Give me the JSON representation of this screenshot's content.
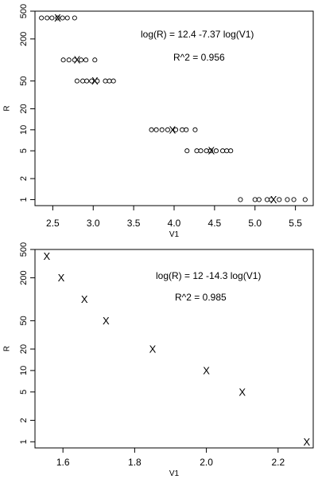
{
  "chart_data": [
    {
      "type": "scatter",
      "xlabel": "V1",
      "ylabel": "R",
      "xlim": [
        2.28,
        5.72
      ],
      "ylim": [
        0.82,
        500
      ],
      "y_scale": "log",
      "x_ticks": [
        "2.5",
        "3.0",
        "3.5",
        "4.0",
        "4.5",
        "5.0",
        "5.5"
      ],
      "y_ticks": [
        "1",
        "2",
        "5",
        "10",
        "20",
        "50",
        "200",
        "500"
      ],
      "annotations": [
        "log(R) =  12.4 -7.37  log(V1)",
        "R^2  =  0.956"
      ],
      "fit_line": {
        "intercept": 12.4,
        "slope": -7.37
      },
      "series": [
        {
          "marker": "circle",
          "points": [
            {
              "x": 2.36,
              "y": 400
            },
            {
              "x": 2.43,
              "y": 400
            },
            {
              "x": 2.49,
              "y": 400
            },
            {
              "x": 2.56,
              "y": 400
            },
            {
              "x": 2.62,
              "y": 400
            },
            {
              "x": 2.68,
              "y": 400
            },
            {
              "x": 2.77,
              "y": 400
            },
            {
              "x": 2.63,
              "y": 100
            },
            {
              "x": 2.7,
              "y": 100
            },
            {
              "x": 2.77,
              "y": 100
            },
            {
              "x": 2.85,
              "y": 100
            },
            {
              "x": 2.91,
              "y": 100
            },
            {
              "x": 3.02,
              "y": 100
            },
            {
              "x": 2.8,
              "y": 50
            },
            {
              "x": 2.87,
              "y": 50
            },
            {
              "x": 2.92,
              "y": 50
            },
            {
              "x": 2.98,
              "y": 50
            },
            {
              "x": 3.05,
              "y": 50
            },
            {
              "x": 3.15,
              "y": 50
            },
            {
              "x": 3.2,
              "y": 50
            },
            {
              "x": 3.25,
              "y": 50
            },
            {
              "x": 3.72,
              "y": 10
            },
            {
              "x": 3.78,
              "y": 10
            },
            {
              "x": 3.85,
              "y": 10
            },
            {
              "x": 3.92,
              "y": 10
            },
            {
              "x": 4.02,
              "y": 10
            },
            {
              "x": 4.1,
              "y": 10
            },
            {
              "x": 4.15,
              "y": 10
            },
            {
              "x": 4.26,
              "y": 10
            },
            {
              "x": 4.16,
              "y": 5
            },
            {
              "x": 4.28,
              "y": 5
            },
            {
              "x": 4.33,
              "y": 5
            },
            {
              "x": 4.4,
              "y": 5
            },
            {
              "x": 4.45,
              "y": 5
            },
            {
              "x": 4.52,
              "y": 5
            },
            {
              "x": 4.6,
              "y": 5
            },
            {
              "x": 4.65,
              "y": 5
            },
            {
              "x": 4.7,
              "y": 5
            },
            {
              "x": 4.82,
              "y": 1
            },
            {
              "x": 5.0,
              "y": 1
            },
            {
              "x": 5.05,
              "y": 1
            },
            {
              "x": 5.15,
              "y": 1
            },
            {
              "x": 5.2,
              "y": 1
            },
            {
              "x": 5.3,
              "y": 1
            },
            {
              "x": 5.4,
              "y": 1
            },
            {
              "x": 5.48,
              "y": 1
            },
            {
              "x": 5.62,
              "y": 1
            }
          ]
        },
        {
          "marker": "X",
          "points": [
            {
              "x": 2.56,
              "y": 400
            },
            {
              "x": 2.8,
              "y": 100
            },
            {
              "x": 3.02,
              "y": 50
            },
            {
              "x": 3.98,
              "y": 10
            },
            {
              "x": 4.46,
              "y": 5
            },
            {
              "x": 5.23,
              "y": 1
            }
          ]
        }
      ]
    },
    {
      "type": "scatter",
      "xlabel": "V1",
      "ylabel": "R",
      "xlim": [
        1.522,
        2.298
      ],
      "ylim": [
        0.82,
        500
      ],
      "y_scale": "log",
      "x_ticks": [
        "1.6",
        "1.8",
        "2.0",
        "2.2"
      ],
      "y_ticks": [
        "1",
        "2",
        "5",
        "10",
        "20",
        "50",
        "200",
        "500"
      ],
      "annotations": [
        "log(R) =  12 -14.3  log(V1)",
        "R^2  =  0.985"
      ],
      "fit_line": {
        "intercept": 12,
        "slope": -14.3
      },
      "series": [
        {
          "marker": "X",
          "points": [
            {
              "x": 1.555,
              "y": 400
            },
            {
              "x": 1.595,
              "y": 200
            },
            {
              "x": 1.66,
              "y": 100
            },
            {
              "x": 1.72,
              "y": 50
            },
            {
              "x": 1.85,
              "y": 20
            },
            {
              "x": 2.0,
              "y": 10
            },
            {
              "x": 2.1,
              "y": 5
            },
            {
              "x": 2.28,
              "y": 1
            }
          ]
        }
      ]
    }
  ]
}
